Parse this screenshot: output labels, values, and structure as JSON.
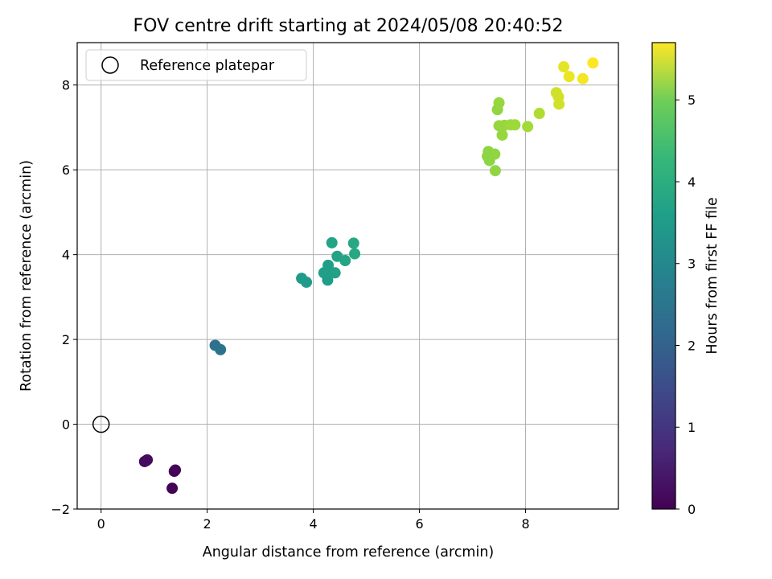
{
  "chart_data": {
    "type": "scatter",
    "title": "FOV centre drift starting at 2024/05/08 20:40:52",
    "xlabel": "Angular distance from reference (arcmin)",
    "ylabel": "Rotation from reference (arcmin)",
    "xlim": [
      -0.45,
      9.75
    ],
    "ylim": [
      -2.0,
      9.0
    ],
    "xticks": [
      0,
      2,
      4,
      6,
      8
    ],
    "yticks": [
      -2,
      0,
      2,
      4,
      6,
      8
    ],
    "grid": true,
    "legend": {
      "position": "top-left",
      "entries": [
        "Reference platepar"
      ]
    },
    "reference_point": {
      "x": 0,
      "y": 0
    },
    "colorbar": {
      "label": "Hours from first FF file",
      "colormap": "viridis",
      "range": [
        0,
        5.7
      ],
      "ticks": [
        0,
        1,
        2,
        3,
        4,
        5
      ]
    },
    "points": [
      {
        "x": 0.82,
        "y": -0.88,
        "c": 0.15
      },
      {
        "x": 0.87,
        "y": -0.84,
        "c": 0.18
      },
      {
        "x": 0.85,
        "y": -0.86,
        "c": 0.17
      },
      {
        "x": 1.38,
        "y": -1.11,
        "c": 0.05
      },
      {
        "x": 1.4,
        "y": -1.08,
        "c": 0.06
      },
      {
        "x": 1.34,
        "y": -1.51,
        "c": 0.02
      },
      {
        "x": 2.15,
        "y": 1.86,
        "c": 2.1
      },
      {
        "x": 2.25,
        "y": 1.76,
        "c": 2.2
      },
      {
        "x": 3.78,
        "y": 3.44,
        "c": 3.1
      },
      {
        "x": 3.87,
        "y": 3.35,
        "c": 3.1
      },
      {
        "x": 4.2,
        "y": 3.57,
        "c": 3.2
      },
      {
        "x": 4.27,
        "y": 3.4,
        "c": 3.15
      },
      {
        "x": 4.28,
        "y": 3.75,
        "c": 3.2
      },
      {
        "x": 4.31,
        "y": 3.6,
        "c": 3.2
      },
      {
        "x": 4.41,
        "y": 3.57,
        "c": 3.25
      },
      {
        "x": 4.35,
        "y": 4.28,
        "c": 3.3
      },
      {
        "x": 4.45,
        "y": 3.96,
        "c": 3.3
      },
      {
        "x": 4.6,
        "y": 3.86,
        "c": 3.35
      },
      {
        "x": 4.76,
        "y": 4.27,
        "c": 3.4
      },
      {
        "x": 4.78,
        "y": 4.02,
        "c": 3.4
      },
      {
        "x": 7.28,
        "y": 6.32,
        "c": 4.7
      },
      {
        "x": 7.3,
        "y": 6.43,
        "c": 4.7
      },
      {
        "x": 7.32,
        "y": 6.22,
        "c": 4.7
      },
      {
        "x": 7.42,
        "y": 6.37,
        "c": 4.75
      },
      {
        "x": 7.43,
        "y": 5.98,
        "c": 4.75
      },
      {
        "x": 7.47,
        "y": 7.42,
        "c": 4.75
      },
      {
        "x": 7.5,
        "y": 7.58,
        "c": 4.8
      },
      {
        "x": 7.5,
        "y": 7.04,
        "c": 4.8
      },
      {
        "x": 7.56,
        "y": 6.82,
        "c": 4.8
      },
      {
        "x": 7.6,
        "y": 7.05,
        "c": 4.8
      },
      {
        "x": 7.72,
        "y": 7.06,
        "c": 4.85
      },
      {
        "x": 7.8,
        "y": 7.06,
        "c": 4.85
      },
      {
        "x": 8.04,
        "y": 7.02,
        "c": 4.9
      },
      {
        "x": 8.26,
        "y": 7.33,
        "c": 5.0
      },
      {
        "x": 8.58,
        "y": 7.82,
        "c": 5.3
      },
      {
        "x": 8.62,
        "y": 7.72,
        "c": 5.3
      },
      {
        "x": 8.63,
        "y": 7.55,
        "c": 5.3
      },
      {
        "x": 8.72,
        "y": 8.43,
        "c": 5.5
      },
      {
        "x": 8.82,
        "y": 8.2,
        "c": 5.55
      },
      {
        "x": 9.08,
        "y": 8.15,
        "c": 5.6
      },
      {
        "x": 9.27,
        "y": 8.52,
        "c": 5.7
      }
    ]
  }
}
